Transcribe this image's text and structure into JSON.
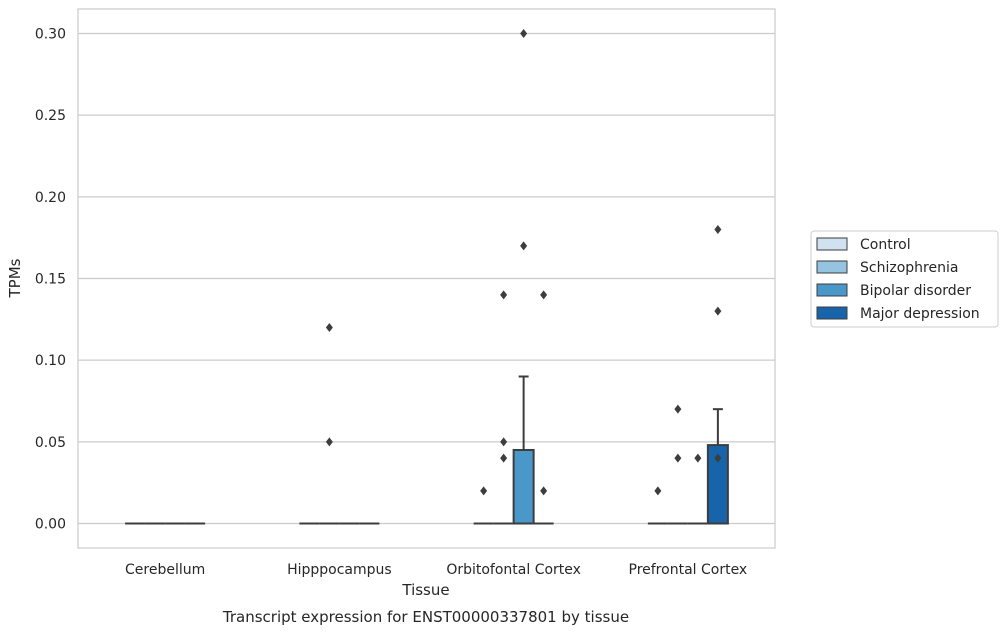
{
  "chart_data": {
    "type": "box",
    "caption": "Transcript expression for ENST00000337801 by tissue",
    "xlabel": "Tissue",
    "ylabel": "TPMs",
    "ylim": [
      -0.015,
      0.315
    ],
    "yticks": [
      0.0,
      0.05,
      0.1,
      0.15,
      0.2,
      0.25,
      0.3
    ],
    "ytick_labels": [
      "0.00",
      "0.05",
      "0.10",
      "0.15",
      "0.20",
      "0.25",
      "0.30"
    ],
    "grid": "horizontal",
    "legend_position": "right",
    "categories": [
      "Cerebellum",
      "Hipppocampus",
      "Orbitofontal Cortex",
      "Prefrontal Cortex"
    ],
    "series": [
      {
        "name": "Control",
        "color": "#d0e1f2",
        "boxes": [
          {
            "q1": 0,
            "median": 0,
            "q3": 0,
            "whisker_low": 0,
            "whisker_high": 0,
            "outliers": []
          },
          {
            "q1": 0,
            "median": 0,
            "q3": 0,
            "whisker_low": 0,
            "whisker_high": 0,
            "outliers": []
          },
          {
            "q1": 0,
            "median": 0,
            "q3": 0,
            "whisker_low": 0,
            "whisker_high": 0,
            "outliers": [
              0.02
            ]
          },
          {
            "q1": 0,
            "median": 0,
            "q3": 0,
            "whisker_low": 0,
            "whisker_high": 0,
            "outliers": [
              0.02
            ]
          }
        ]
      },
      {
        "name": "Schizophrenia",
        "color": "#94c4df",
        "boxes": [
          {
            "q1": 0,
            "median": 0,
            "q3": 0,
            "whisker_low": 0,
            "whisker_high": 0,
            "outliers": []
          },
          {
            "q1": 0,
            "median": 0,
            "q3": 0,
            "whisker_low": 0,
            "whisker_high": 0,
            "outliers": [
              0.05,
              0.12
            ]
          },
          {
            "q1": 0,
            "median": 0,
            "q3": 0,
            "whisker_low": 0,
            "whisker_high": 0,
            "outliers": [
              0.04,
              0.05,
              0.14
            ]
          },
          {
            "q1": 0,
            "median": 0,
            "q3": 0,
            "whisker_low": 0,
            "whisker_high": 0,
            "outliers": [
              0.04,
              0.07
            ]
          }
        ]
      },
      {
        "name": "Bipolar disorder",
        "color": "#4a98c9",
        "boxes": [
          {
            "q1": 0,
            "median": 0,
            "q3": 0,
            "whisker_low": 0,
            "whisker_high": 0,
            "outliers": []
          },
          {
            "q1": 0,
            "median": 0,
            "q3": 0,
            "whisker_low": 0,
            "whisker_high": 0,
            "outliers": []
          },
          {
            "q1": 0,
            "median": 0,
            "q3": 0.045,
            "whisker_low": 0,
            "whisker_high": 0.09,
            "outliers": [
              0.17,
              0.3
            ]
          },
          {
            "q1": 0,
            "median": 0,
            "q3": 0,
            "whisker_low": 0,
            "whisker_high": 0,
            "outliers": [
              0.04
            ]
          }
        ]
      },
      {
        "name": "Major depression",
        "color": "#1764ab",
        "boxes": [
          {
            "q1": 0,
            "median": 0,
            "q3": 0,
            "whisker_low": 0,
            "whisker_high": 0,
            "outliers": []
          },
          {
            "q1": 0,
            "median": 0,
            "q3": 0,
            "whisker_low": 0,
            "whisker_high": 0,
            "outliers": []
          },
          {
            "q1": 0,
            "median": 0,
            "q3": 0,
            "whisker_low": 0,
            "whisker_high": 0,
            "outliers": [
              0.02,
              0.14
            ]
          },
          {
            "q1": 0,
            "median": 0,
            "q3": 0.048,
            "whisker_low": 0,
            "whisker_high": 0.07,
            "outliers": [
              0.04,
              0.13,
              0.18
            ]
          }
        ]
      }
    ]
  }
}
